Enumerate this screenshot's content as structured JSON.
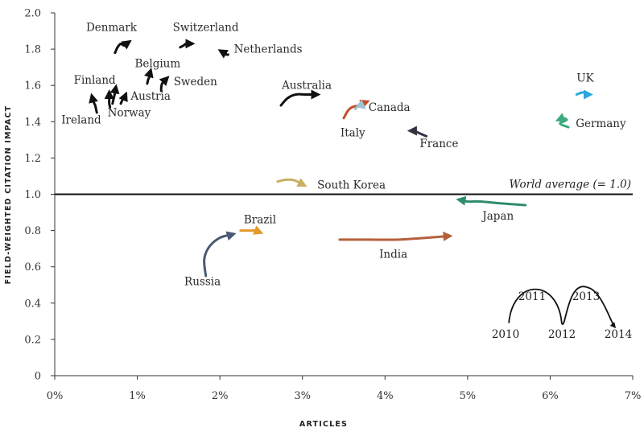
{
  "chart_data": {
    "type": "line",
    "title": "",
    "xlabel": "ARTICLES",
    "ylabel": "FIELD-WEIGHTED CITATION IMPACT",
    "xlim": [
      0,
      7
    ],
    "ylim": [
      0,
      2.0
    ],
    "x_ticks": [
      0,
      1,
      2,
      3,
      4,
      5,
      6,
      7
    ],
    "x_tick_labels": [
      "0%",
      "1%",
      "2%",
      "3%",
      "4%",
      "5%",
      "6%",
      "7%"
    ],
    "y_ticks": [
      0,
      0.2,
      0.4,
      0.6,
      0.8,
      1.0,
      1.2,
      1.4,
      1.6,
      1.8,
      2.0
    ],
    "y_tick_labels": [
      "0",
      "0.2",
      "0.4",
      "0.6",
      "0.8",
      "1.0",
      "1.2",
      "1.4",
      "1.6",
      "1.8",
      "2.0"
    ],
    "reference_line": {
      "y": 1.0,
      "label": "World average (= 1.0)"
    },
    "legend": {
      "years": [
        "2010",
        "2011",
        "2012",
        "2013",
        "2014"
      ],
      "start": {
        "x": 5.5,
        "y": 0.29
      },
      "end": {
        "x": 6.78,
        "y": 0.27
      }
    },
    "series": [
      {
        "name": "Denmark",
        "color": "#111111",
        "x": [
          0.73,
          0.76,
          0.8,
          0.84,
          0.9
        ],
        "y": [
          1.78,
          1.81,
          1.83,
          1.82,
          1.84
        ]
      },
      {
        "name": "Switzerland",
        "color": "#111111",
        "x": [
          1.52,
          1.56,
          1.59,
          1.62,
          1.66
        ],
        "y": [
          1.81,
          1.82,
          1.83,
          1.83,
          1.83
        ]
      },
      {
        "name": "Netherlands",
        "color": "#111111",
        "x": [
          2.1,
          2.08,
          2.06,
          2.04,
          2.01
        ],
        "y": [
          1.77,
          1.77,
          1.78,
          1.78,
          1.79
        ]
      },
      {
        "name": "Belgium",
        "color": "#111111",
        "x": [
          1.12,
          1.13,
          1.14,
          1.15,
          1.16
        ],
        "y": [
          1.61,
          1.63,
          1.64,
          1.66,
          1.68
        ]
      },
      {
        "name": "Sweden",
        "color": "#111111",
        "x": [
          1.29,
          1.29,
          1.3,
          1.32,
          1.36
        ],
        "y": [
          1.57,
          1.59,
          1.61,
          1.62,
          1.64
        ]
      },
      {
        "name": "Finland",
        "color": "#111111",
        "x": [
          0.7,
          0.71,
          0.72,
          0.73,
          0.74
        ],
        "y": [
          1.5,
          1.52,
          1.54,
          1.56,
          1.59
        ]
      },
      {
        "name": "Austria",
        "color": "#111111",
        "x": [
          0.8,
          0.81,
          0.82,
          0.84,
          0.86
        ],
        "y": [
          1.5,
          1.51,
          1.52,
          1.53,
          1.55
        ]
      },
      {
        "name": "Norway",
        "color": "#111111",
        "x": [
          0.67,
          0.66,
          0.66,
          0.66,
          0.66
        ],
        "y": [
          1.48,
          1.5,
          1.52,
          1.54,
          1.56
        ]
      },
      {
        "name": "Ireland",
        "color": "#111111",
        "x": [
          0.51,
          0.5,
          0.49,
          0.47,
          0.45
        ],
        "y": [
          1.45,
          1.47,
          1.49,
          1.51,
          1.54
        ]
      },
      {
        "name": "Australia",
        "color": "#111111",
        "x": [
          2.74,
          2.82,
          2.92,
          3.05,
          3.18
        ],
        "y": [
          1.49,
          1.53,
          1.55,
          1.55,
          1.55
        ]
      },
      {
        "name": "Canada",
        "color": "#c0502a",
        "x": [
          3.5,
          3.55,
          3.6,
          3.68,
          3.78
        ],
        "y": [
          1.42,
          1.46,
          1.48,
          1.49,
          1.51
        ]
      },
      {
        "name": "Italy",
        "color": "#9cc3d6",
        "x": [
          3.64,
          3.66,
          3.68,
          3.71,
          3.74
        ],
        "y": [
          1.47,
          1.48,
          1.49,
          1.49,
          1.48
        ]
      },
      {
        "name": "France",
        "color": "#333344",
        "x": [
          4.5,
          4.45,
          4.4,
          4.35,
          4.31
        ],
        "y": [
          1.32,
          1.33,
          1.34,
          1.35,
          1.35
        ]
      },
      {
        "name": "UK",
        "color": "#2ba7de",
        "x": [
          6.32,
          6.38,
          6.42,
          6.45,
          6.48
        ],
        "y": [
          1.55,
          1.56,
          1.56,
          1.55,
          1.55
        ]
      },
      {
        "name": "Germany",
        "color": "#3bab7d",
        "x": [
          6.22,
          6.12,
          6.2,
          6.14,
          6.1
        ],
        "y": [
          1.37,
          1.39,
          1.41,
          1.42,
          1.41
        ]
      },
      {
        "name": "South Korea",
        "color": "#c8b060",
        "x": [
          2.7,
          2.79,
          2.87,
          2.94,
          3.02
        ],
        "y": [
          1.07,
          1.08,
          1.08,
          1.07,
          1.05
        ]
      },
      {
        "name": "Japan",
        "color": "#2f8c6e",
        "x": [
          5.7,
          5.4,
          5.15,
          5.0,
          4.9
        ],
        "y": [
          0.94,
          0.95,
          0.96,
          0.96,
          0.97
        ]
      },
      {
        "name": "Brazil",
        "color": "#e39a2c",
        "x": [
          2.25,
          2.32,
          2.38,
          2.43,
          2.49
        ],
        "y": [
          0.8,
          0.8,
          0.8,
          0.8,
          0.79
        ]
      },
      {
        "name": "India",
        "color": "#b5603c",
        "x": [
          3.45,
          3.8,
          4.15,
          4.5,
          4.78
        ],
        "y": [
          0.75,
          0.75,
          0.75,
          0.76,
          0.77
        ]
      },
      {
        "name": "Russia",
        "color": "#4a5a74",
        "x": [
          1.83,
          1.81,
          1.87,
          2.0,
          2.16
        ],
        "y": [
          0.55,
          0.64,
          0.71,
          0.76,
          0.78
        ]
      }
    ],
    "labels": [
      {
        "name": "Denmark",
        "text": "Denmark",
        "x": 0.38,
        "y": 1.9
      },
      {
        "name": "Switzerland",
        "text": "Switzerland",
        "x": 1.43,
        "y": 1.9
      },
      {
        "name": "Netherlands",
        "text": "Netherlands",
        "x": 2.17,
        "y": 1.78
      },
      {
        "name": "Belgium",
        "text": "Belgium",
        "x": 0.97,
        "y": 1.7
      },
      {
        "name": "Sweden",
        "text": "Sweden",
        "x": 1.44,
        "y": 1.6
      },
      {
        "name": "Finland",
        "text": "Finland",
        "x": 0.23,
        "y": 1.61
      },
      {
        "name": "Austria",
        "text": "Austria",
        "x": 0.92,
        "y": 1.52
      },
      {
        "name": "Norway",
        "text": "Norway",
        "x": 0.64,
        "y": 1.43
      },
      {
        "name": "Ireland",
        "text": "Ireland",
        "x": 0.08,
        "y": 1.39
      },
      {
        "name": "Australia",
        "text": "Australia",
        "x": 2.75,
        "y": 1.58
      },
      {
        "name": "Canada",
        "text": "Canada",
        "x": 3.8,
        "y": 1.46
      },
      {
        "name": "Italy",
        "text": "Italy",
        "x": 3.46,
        "y": 1.32
      },
      {
        "name": "France",
        "text": "France",
        "x": 4.42,
        "y": 1.26
      },
      {
        "name": "UK",
        "text": "UK",
        "x": 6.32,
        "y": 1.62
      },
      {
        "name": "Germany",
        "text": "Germany",
        "x": 6.31,
        "y": 1.37
      },
      {
        "name": "South Korea",
        "text": "South Korea",
        "x": 3.18,
        "y": 1.03
      },
      {
        "name": "Japan",
        "text": "Japan",
        "x": 5.18,
        "y": 0.86
      },
      {
        "name": "Brazil",
        "text": "Brazil",
        "x": 2.29,
        "y": 0.84
      },
      {
        "name": "India",
        "text": "India",
        "x": 3.93,
        "y": 0.65
      },
      {
        "name": "Russia",
        "text": "Russia",
        "x": 1.57,
        "y": 0.5
      }
    ]
  }
}
